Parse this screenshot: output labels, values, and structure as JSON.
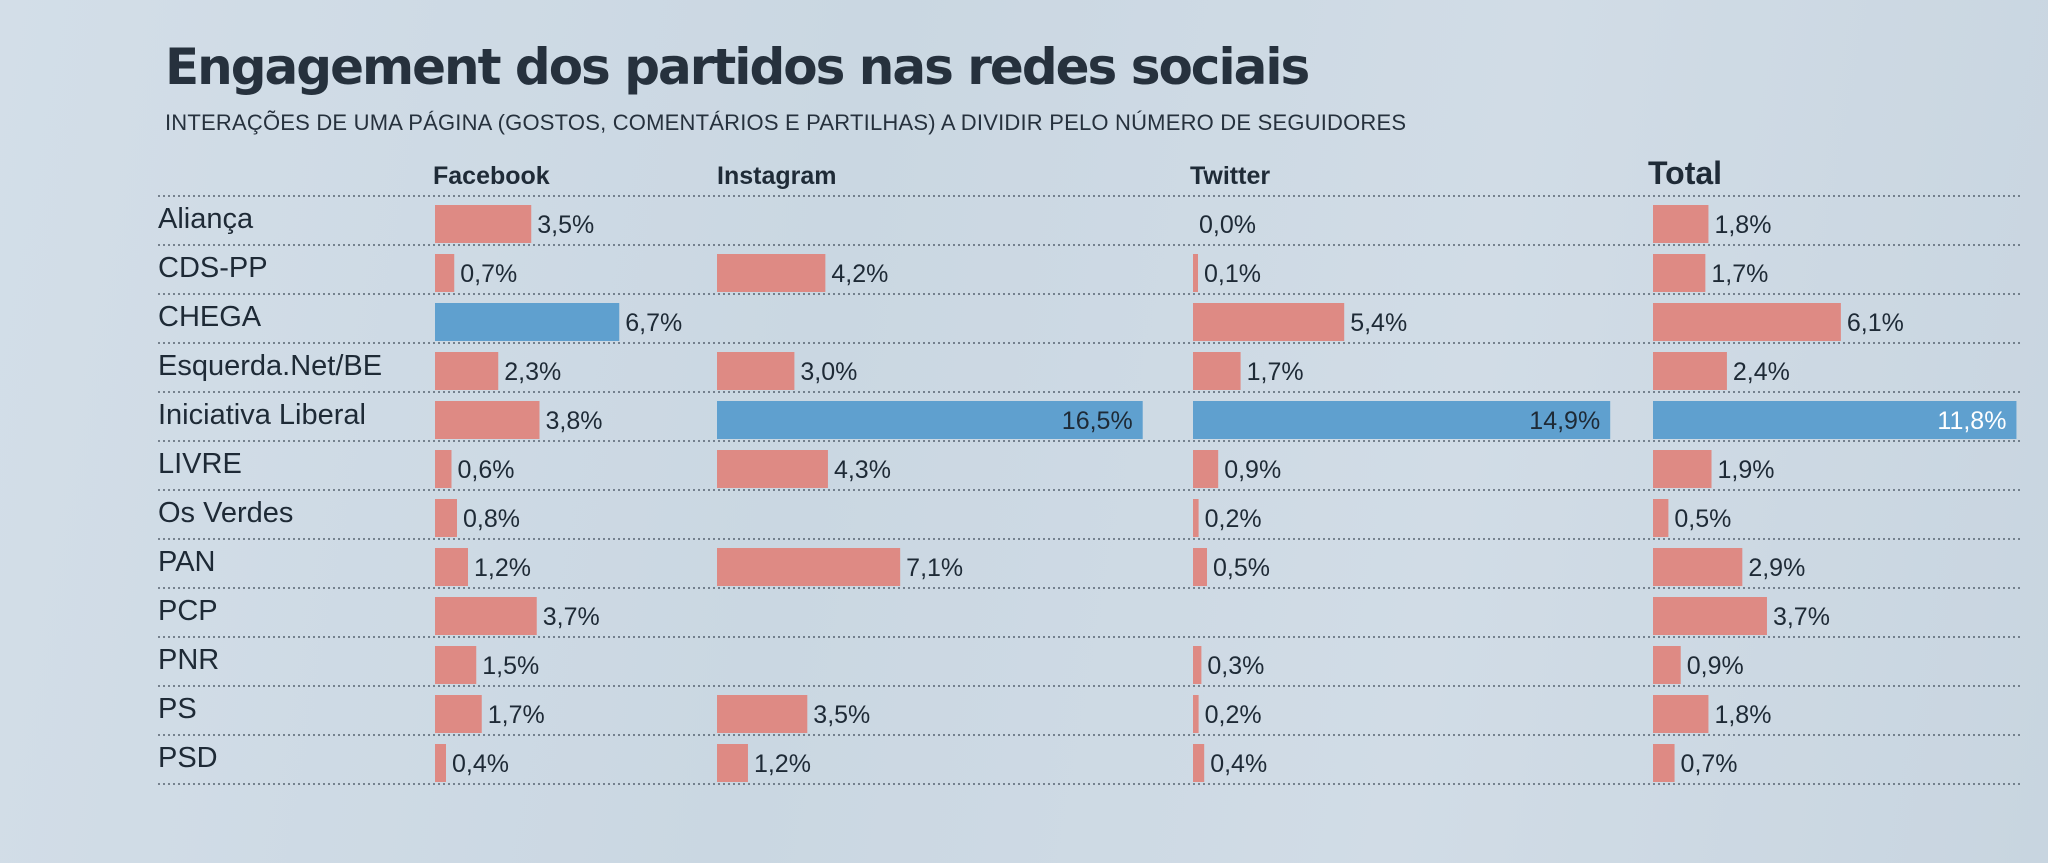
{
  "title": "Engagement dos partidos nas redes sociais",
  "subtitle": "INTERAÇÕES DE UMA PÁGINA (GOSTOS, COMENTÁRIOS E PARTILHAS) A DIVIDIR PELO NÚMERO DE SEGUIDORES",
  "colors": {
    "bar": "#de8a84",
    "highlight": "#5fa0cf",
    "text": "#1e2a36",
    "rule": "#3a4755"
  },
  "chart_data": {
    "type": "bar",
    "orientation": "horizontal",
    "title": "Engagement dos partidos nas redes sociais",
    "subtitle": "INTERAÇÕES DE UMA PÁGINA (GOSTOS, COMENTÁRIOS E PARTILHAS) A DIVIDIR PELO NÚMERO DE SEGUIDORES",
    "unit": "%",
    "categories": [
      "Aliança",
      "CDS-PP",
      "CHEGA",
      "Esquerda.Net/BE",
      "Iniciativa Liberal",
      "LIVRE",
      "Os Verdes",
      "PAN",
      "PCP",
      "PNR",
      "PS",
      "PSD"
    ],
    "series": [
      {
        "name": "Facebook",
        "values": [
          3.5,
          0.7,
          6.7,
          2.3,
          3.8,
          0.6,
          0.8,
          1.2,
          3.7,
          1.5,
          1.7,
          0.4
        ],
        "labels": [
          "3,5%",
          "0,7%",
          "6,7%",
          "2,3%",
          "3,8%",
          "0,6%",
          "0,8%",
          "1,2%",
          "3,7%",
          "1,5%",
          "1,7%",
          "0,4%"
        ]
      },
      {
        "name": "Instagram",
        "values": [
          null,
          4.2,
          null,
          3.0,
          16.5,
          4.3,
          null,
          7.1,
          null,
          null,
          3.5,
          1.2
        ],
        "labels": [
          "",
          "4,2%",
          "",
          "3,0%",
          "16,5%",
          "4,3%",
          "",
          "7,1%",
          "",
          "",
          "3,5%",
          "1,2%"
        ]
      },
      {
        "name": "Twitter",
        "values": [
          0.0,
          0.1,
          5.4,
          1.7,
          14.9,
          0.9,
          0.2,
          0.5,
          null,
          0.3,
          0.2,
          0.4
        ],
        "labels": [
          "0,0%",
          "0,1%",
          "5,4%",
          "1,7%",
          "14,9%",
          "0,9%",
          "0,2%",
          "0,5%",
          "",
          "0,3%",
          "0,2%",
          "0,4%"
        ]
      },
      {
        "name": "Total",
        "values": [
          1.8,
          1.7,
          6.1,
          2.4,
          11.8,
          1.9,
          0.5,
          2.9,
          3.7,
          0.9,
          1.8,
          0.7
        ],
        "labels": [
          "1,8%",
          "1,7%",
          "6,1%",
          "2,4%",
          "11,8%",
          "1,9%",
          "0,5%",
          "2,9%",
          "3,7%",
          "0,9%",
          "1,8%",
          "0,7%"
        ]
      }
    ],
    "highlight_max_per_series": true,
    "grid": false
  }
}
